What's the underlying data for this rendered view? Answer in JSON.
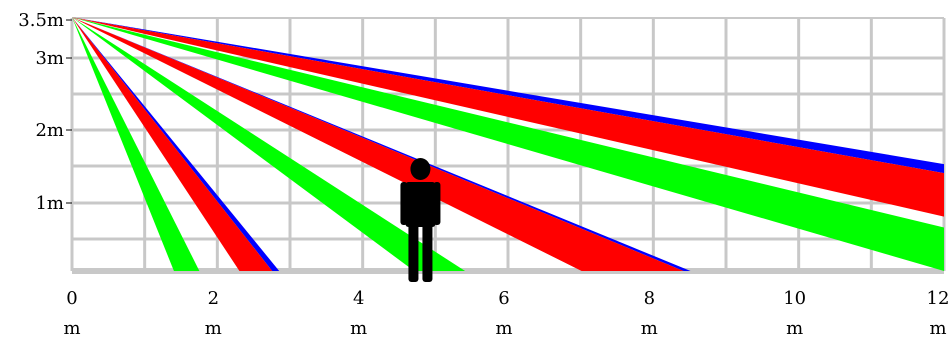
{
  "diagram": {
    "y_axis": {
      "ticks": [
        {
          "value": 3.5,
          "label": "3.5m"
        },
        {
          "value": 3,
          "label": "3m"
        },
        {
          "value": 2,
          "label": "2m"
        },
        {
          "value": 1,
          "label": "1m"
        }
      ]
    },
    "x_axis": {
      "ticks": [
        {
          "value": 0,
          "label": "0"
        },
        {
          "value": 2,
          "label": "2"
        },
        {
          "value": 4,
          "label": "4"
        },
        {
          "value": 6,
          "label": "6"
        },
        {
          "value": 8,
          "label": "8"
        },
        {
          "value": 10,
          "label": "10"
        },
        {
          "value": 12,
          "label": "12"
        }
      ],
      "unit": "m"
    },
    "mount_height_m": 3.5,
    "colors": {
      "green": "#00ff00",
      "red": "#ff0000",
      "blue": "#0000ff",
      "grid": "#c8c8c8",
      "person": "#000000"
    },
    "beams": [
      {
        "name": "beam-near-green",
        "color": "green",
        "ground_start_m": 1.4,
        "ground_end_m": 1.75
      },
      {
        "name": "beam-near-red",
        "color": "red",
        "ground_start_m": 2.3,
        "ground_end_m": 2.75,
        "blue_edge": true
      },
      {
        "name": "beam-mid-green",
        "color": "green",
        "ground_start_m": 4.7,
        "ground_end_m": 5.4
      },
      {
        "name": "beam-mid-red",
        "color": "red",
        "ground_start_m": 7.0,
        "ground_end_m": 8.4,
        "blue_edge": true
      },
      {
        "name": "beam-far-green",
        "color": "green",
        "edge_end_height_m": [
          0.6,
          0.0
        ]
      },
      {
        "name": "beam-far-red",
        "color": "red",
        "edge_end_height_m": [
          1.35,
          0.75
        ],
        "blue_edge": true
      }
    ],
    "person": {
      "position_m": 4.8,
      "height_m": 1.6
    }
  }
}
